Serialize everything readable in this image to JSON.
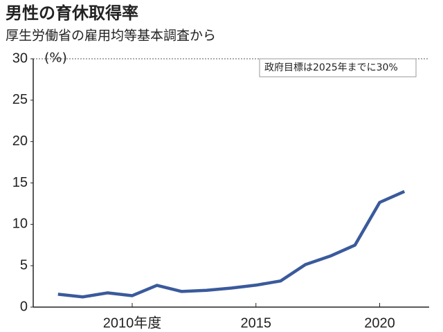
{
  "chart_data": {
    "type": "line",
    "title": "男性の育休取得率",
    "subtitle": "厚生労働省の雇用均等基本調査から",
    "y_label": "(%)",
    "annotation": "政府目標は2025年までに30%",
    "x": [
      2007,
      2008,
      2009,
      2010,
      2011,
      2012,
      2013,
      2014,
      2015,
      2016,
      2017,
      2018,
      2019,
      2020,
      2021
    ],
    "values": [
      1.56,
      1.23,
      1.72,
      1.38,
      2.63,
      1.89,
      2.03,
      2.3,
      2.65,
      3.16,
      5.14,
      6.16,
      7.48,
      12.65,
      13.97
    ],
    "color": "#3a5a9c",
    "xlim": [
      2006,
      2022
    ],
    "xticks": [
      {
        "value": 2010,
        "label": "2010年度"
      },
      2015,
      2020
    ],
    "ylim": [
      0,
      30
    ],
    "yticks": [
      0,
      5,
      10,
      15,
      20,
      25,
      30
    ],
    "reference_line": 30
  }
}
